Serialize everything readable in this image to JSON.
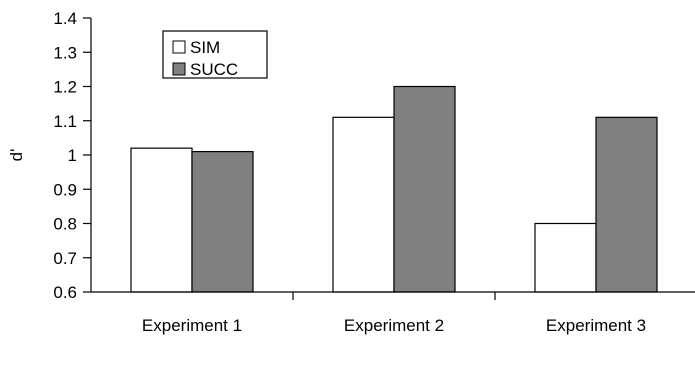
{
  "chart_data": {
    "type": "bar",
    "title": "",
    "xlabel": "",
    "ylabel": "d'",
    "ylim": [
      0.6,
      1.4
    ],
    "yticks": [
      0.6,
      0.7,
      0.8,
      0.9,
      1,
      1.1,
      1.2,
      1.3,
      1.4
    ],
    "ytick_labels": [
      "0.6",
      "0.7",
      "0.8",
      "0.9",
      "1",
      "1.1",
      "1.2",
      "1.3",
      "1.4"
    ],
    "categories": [
      "Experiment 1",
      "Experiment 2",
      "Experiment 3"
    ],
    "series": [
      {
        "name": "SIM",
        "values": [
          1.02,
          1.11,
          0.8
        ],
        "color": "#ffffff"
      },
      {
        "name": "SUCC",
        "values": [
          1.01,
          1.2,
          1.11
        ],
        "color": "#808080"
      }
    ],
    "grid": false,
    "legend_position": "top-left"
  }
}
